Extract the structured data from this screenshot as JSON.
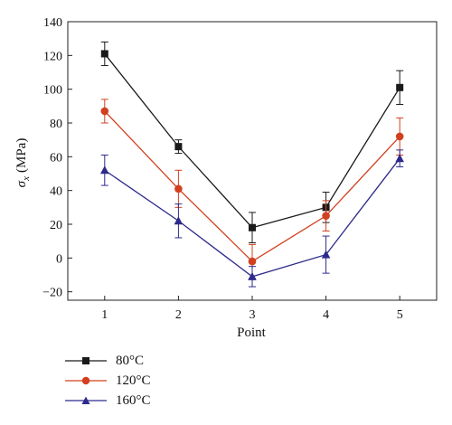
{
  "chart_data": {
    "type": "line",
    "xlabel": "Point",
    "ylabel_symbol": "σ",
    "ylabel_subscript": "x",
    "ylabel_unit": "(MPa)",
    "x": [
      1,
      2,
      3,
      4,
      5
    ],
    "xlim": [
      0.5,
      5.5
    ],
    "ylim": [
      -25,
      140
    ],
    "xticks": [
      1,
      2,
      3,
      4,
      5
    ],
    "yticks": [
      -20,
      0,
      20,
      40,
      60,
      80,
      100,
      120,
      140
    ],
    "grid": false,
    "legend_position": "bottom-left, below plot",
    "series": [
      {
        "name": "80°C",
        "color": "#1a1a1a",
        "marker": "square",
        "values": [
          121,
          66,
          18,
          30,
          101
        ],
        "errors": [
          7,
          4,
          9,
          9,
          10
        ]
      },
      {
        "name": "120°C",
        "color": "#d2401f",
        "marker": "circle",
        "values": [
          87,
          41,
          -2,
          25,
          72
        ],
        "errors": [
          7,
          11,
          10,
          9,
          11
        ]
      },
      {
        "name": "160°C",
        "color": "#2d2a8c",
        "marker": "triangle",
        "values": [
          52,
          22,
          -11,
          2,
          59
        ],
        "errors": [
          9,
          10,
          6,
          11,
          5
        ]
      }
    ]
  }
}
